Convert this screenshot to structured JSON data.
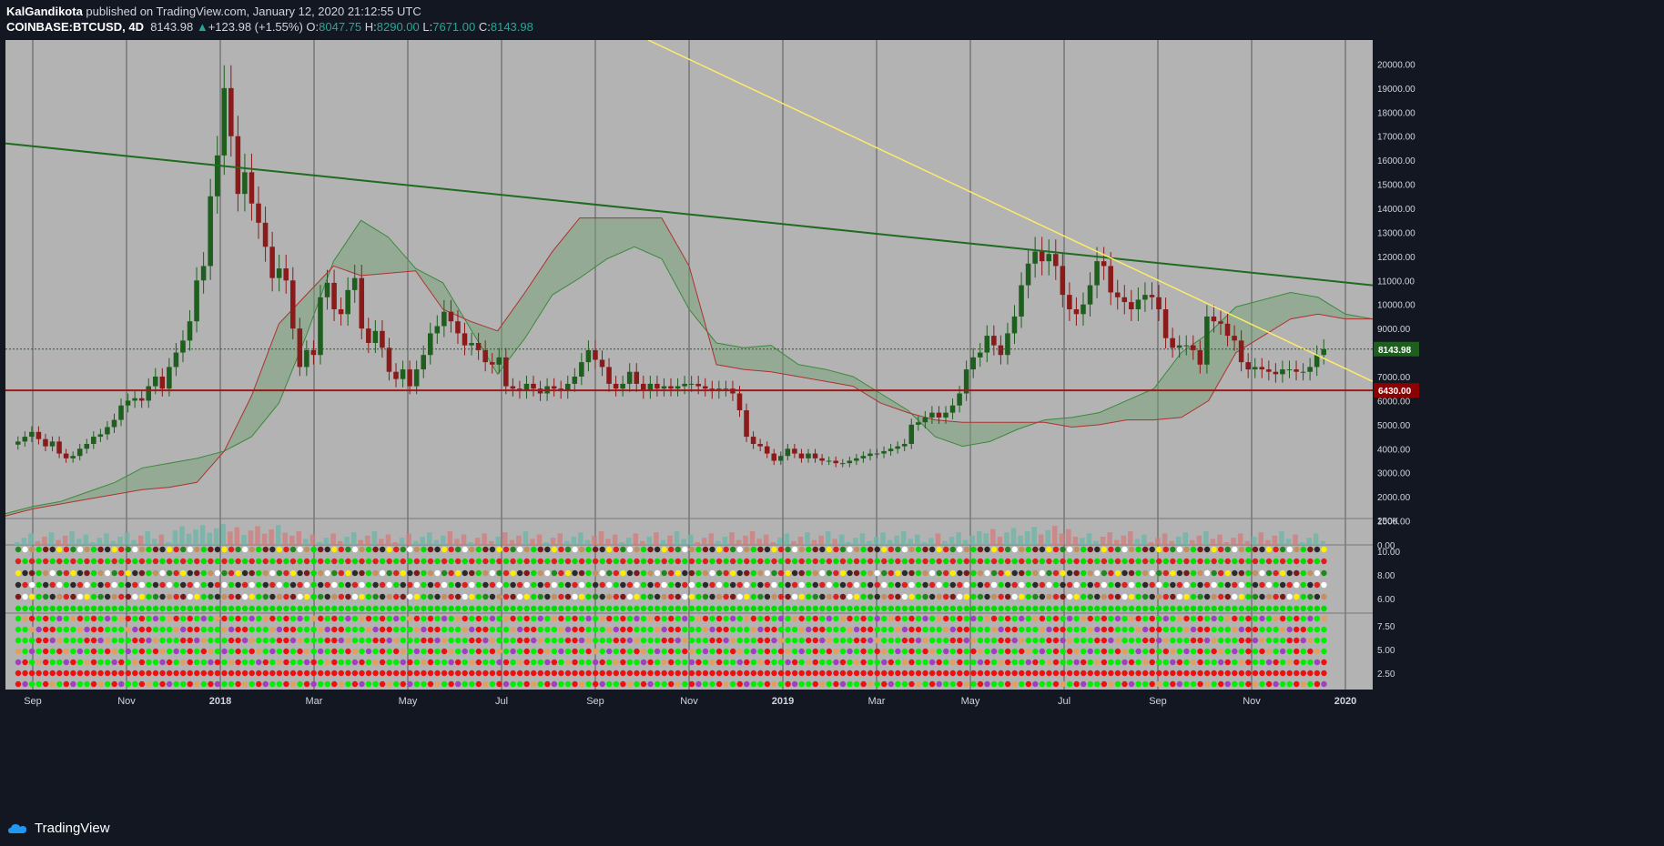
{
  "header": {
    "author": "KalGandikota",
    "published_text": "published on TradingView.com, January 12, 2020 21:12:55 UTC",
    "symbol": "COINBASE:BTCUSD, 4D",
    "last": "8143.98",
    "change": "+123.98 (+1.55%)",
    "o_label": "O:",
    "o_value": "8047.75",
    "h_label": "H:",
    "h_value": "8290.00",
    "l_label": "L:",
    "l_value": "7671.00",
    "c_label": "C:",
    "c_value": "8143.98"
  },
  "footer": {
    "brand": "TradingView"
  },
  "colors": {
    "background": "#b3b3b3",
    "candle_up": "#1e5e1e",
    "candle_down": "#8b1a1a",
    "green_trendline": "#1f6b1f",
    "yellow_trendline": "#ffeb6b",
    "support_line": "#a01818",
    "price_label": "#1e5e1e",
    "support_label": "#8b0000",
    "cloud_bull": "#6f9f6f",
    "cloud_bear": "#c98f8f"
  },
  "chart_data": {
    "type": "candlestick",
    "xlabels": [
      "Sep",
      "Nov",
      "2018",
      "Mar",
      "May",
      "Jul",
      "Sep",
      "Nov",
      "2019",
      "Mar",
      "May",
      "Jul",
      "Sep",
      "Nov",
      "2020"
    ],
    "y_ticks": [
      "20000.00",
      "19000.00",
      "18000.00",
      "17000.00",
      "16000.00",
      "15000.00",
      "14000.00",
      "13000.00",
      "12000.00",
      "11000.00",
      "10000.00",
      "9000.00",
      "8000.00",
      "7000.00",
      "6000.00",
      "5000.00",
      "4000.00",
      "3000.00",
      "2000.00",
      "1000.00",
      "0.00"
    ],
    "ylim": [
      0,
      21000
    ],
    "volume_tick": "250K",
    "indicator1_ticks": [
      "10.00",
      "8.00",
      "6.00"
    ],
    "indicator2_ticks": [
      "7.50",
      "5.00",
      "2.50"
    ],
    "last_price_label": "8143.98",
    "support_label": "6430.00",
    "support_level": 6430,
    "closes": [
      4300,
      4500,
      4700,
      4400,
      4100,
      4300,
      3800,
      3600,
      3700,
      4000,
      4200,
      4500,
      4600,
      4900,
      5200,
      5800,
      6000,
      6100,
      6000,
      6600,
      7000,
      6500,
      7400,
      8000,
      8500,
      9300,
      11000,
      11600,
      14500,
      16200,
      19000,
      17000,
      14600,
      15500,
      14200,
      13400,
      12400,
      11100,
      11500,
      11000,
      9000,
      7400,
      8100,
      7900,
      10300,
      10900,
      9800,
      9600,
      10600,
      11100,
      9000,
      8400,
      8900,
      8200,
      7200,
      6900,
      7300,
      6600,
      7300,
      7900,
      8800,
      9100,
      9700,
      9300,
      8800,
      8300,
      8400,
      8100,
      7600,
      7500,
      7800,
      6600,
      6500,
      6400,
      6700,
      6500,
      6300,
      6600,
      6500,
      6400,
      6700,
      7000,
      7600,
      8100,
      7700,
      7400,
      6700,
      6500,
      6700,
      7200,
      6700,
      6400,
      6700,
      6500,
      6600,
      6500,
      6600,
      6700,
      6700,
      6600,
      6500,
      6400,
      6500,
      6500,
      6300,
      5600,
      4500,
      4200,
      4100,
      3800,
      3500,
      3700,
      4000,
      3800,
      3600,
      3800,
      3600,
      3500,
      3500,
      3400,
      3400,
      3500,
      3600,
      3700,
      3800,
      3800,
      3900,
      4000,
      4100,
      4200,
      5000,
      5100,
      5300,
      5500,
      5300,
      5500,
      5800,
      6300,
      7300,
      7800,
      8000,
      8700,
      8300,
      7900,
      8800,
      9500,
      10800,
      11700,
      12200,
      11800,
      12100,
      11600,
      10400,
      9800,
      9600,
      10000,
      10800,
      11800,
      11600,
      10500,
      10300,
      10100,
      9800,
      10200,
      10400,
      10300,
      9800,
      8600,
      8200,
      8300,
      8300,
      8100,
      7500,
      9500,
      9300,
      9200,
      8700,
      8500,
      7600,
      7300,
      7400,
      7300,
      7200,
      7100,
      7300,
      7300,
      7200,
      7200,
      7400,
      7900,
      8144
    ],
    "cloud_a": [
      1300,
      1600,
      1800,
      2200,
      2600,
      3200,
      3400,
      3600,
      3900,
      4500,
      5900,
      8700,
      11800,
      13500,
      12800,
      11500,
      10900,
      9000,
      7100,
      8600,
      10400,
      11100,
      11900,
      12400,
      11900,
      9800,
      8400,
      8200,
      8300,
      7500,
      7300,
      7000,
      6300,
      5600,
      4500,
      4100,
      4300,
      4800,
      5200,
      5300,
      5500,
      6000,
      6500,
      8000,
      8800,
      9900,
      10200,
      10500,
      10300,
      9600,
      9400
    ],
    "cloud_b": [
      1200,
      1500,
      1700,
      1900,
      2100,
      2300,
      2400,
      2600,
      3900,
      6200,
      9200,
      10400,
      11600,
      11200,
      11300,
      11400,
      9800,
      9300,
      8900,
      10500,
      12200,
      13600,
      13600,
      13600,
      13600,
      11600,
      7500,
      7300,
      7200,
      7000,
      6800,
      6600,
      5900,
      5500,
      5200,
      5100,
      5100,
      5100,
      5100,
      4900,
      5000,
      5200,
      5200,
      5300,
      6000,
      8000,
      8700,
      9400,
      9600,
      9400,
      9400
    ],
    "cloud_x": [
      0.0,
      0.05,
      0.1,
      0.15,
      0.2,
      0.25,
      0.3,
      0.35,
      0.4,
      0.45,
      0.5,
      0.55,
      0.6,
      0.65,
      0.7,
      0.75,
      0.8,
      0.85,
      0.9,
      0.95,
      1.0,
      1.05,
      1.1,
      1.15,
      1.2,
      1.25,
      1.3,
      1.35,
      1.4,
      1.45,
      1.5,
      1.55,
      1.6,
      1.65,
      1.7,
      1.75,
      1.8,
      1.85,
      1.9,
      1.95,
      2.0,
      2.05,
      2.1,
      2.15,
      2.2,
      2.25,
      2.3,
      2.35,
      2.4,
      2.45,
      2.5
    ]
  }
}
